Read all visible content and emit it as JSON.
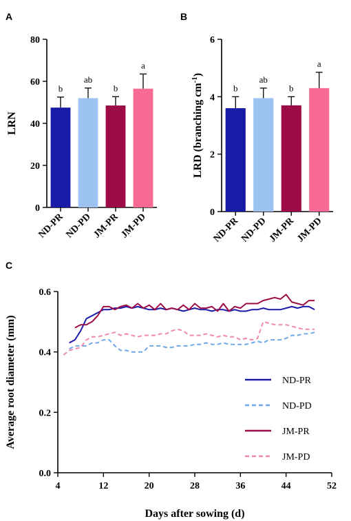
{
  "chart_data": [
    {
      "panel": "A",
      "type": "bar",
      "categories": [
        "ND-PR",
        "ND-PD",
        "JM-PR",
        "JM-PD"
      ],
      "values": [
        47.5,
        52,
        48.5,
        56.5
      ],
      "errors": [
        5,
        4.8,
        4.2,
        7
      ],
      "significance": [
        "b",
        "ab",
        "b",
        "a"
      ],
      "colors": [
        "#1a1aa8",
        "#9cc3f2",
        "#9c0b46",
        "#f76a93"
      ],
      "ylabel": "LRN",
      "ylim": [
        0,
        80
      ],
      "yticks": [
        0,
        20,
        40,
        60,
        80
      ]
    },
    {
      "panel": "B",
      "type": "bar",
      "categories": [
        "ND-PR",
        "ND-PD",
        "JM-PR",
        "JM-PD"
      ],
      "values": [
        3.6,
        3.95,
        3.7,
        4.3
      ],
      "errors": [
        0.4,
        0.35,
        0.3,
        0.55
      ],
      "significance": [
        "b",
        "ab",
        "b",
        "a"
      ],
      "colors": [
        "#1a1aa8",
        "#9cc3f2",
        "#9c0b46",
        "#f76a93"
      ],
      "ylabel": "LRD (branching cm",
      "ylabel_sup": "-1",
      "ylabel_end": ")",
      "ylim": [
        0,
        6
      ],
      "yticks": [
        0,
        2,
        4,
        6
      ]
    },
    {
      "panel": "C",
      "type": "line",
      "xlabel": "Days after sowing (d)",
      "ylabel": "Average root diameter (mm)",
      "xlim": [
        4,
        52
      ],
      "ylim": [
        0,
        0.6
      ],
      "xticks": [
        4,
        12,
        20,
        28,
        36,
        44,
        52
      ],
      "yticks": [
        "0.0",
        "0.2",
        "0.4",
        "0.6"
      ],
      "legend_position": "right",
      "series": [
        {
          "name": "ND-PR",
          "color": "#1a1aa8",
          "dash": "solid",
          "x": [
            6,
            7,
            8,
            9,
            10,
            11,
            12,
            13,
            14,
            15,
            16,
            17,
            18,
            19,
            20,
            21,
            22,
            23,
            24,
            25,
            26,
            27,
            28,
            29,
            30,
            31,
            32,
            33,
            34,
            35,
            36,
            37,
            38,
            39,
            40,
            41,
            42,
            43,
            44,
            45,
            46,
            47,
            48,
            49
          ],
          "y": [
            0.43,
            0.44,
            0.47,
            0.51,
            0.52,
            0.53,
            0.54,
            0.54,
            0.545,
            0.545,
            0.55,
            0.545,
            0.55,
            0.545,
            0.54,
            0.54,
            0.545,
            0.54,
            0.545,
            0.54,
            0.535,
            0.54,
            0.545,
            0.54,
            0.54,
            0.535,
            0.54,
            0.54,
            0.535,
            0.54,
            0.535,
            0.535,
            0.54,
            0.54,
            0.545,
            0.54,
            0.54,
            0.54,
            0.545,
            0.55,
            0.545,
            0.55,
            0.55,
            0.54
          ]
        },
        {
          "name": "ND-PD",
          "color": "#6fa8e8",
          "dash": "dashed",
          "x": [
            6,
            7,
            8,
            9,
            10,
            11,
            12,
            13,
            14,
            15,
            16,
            17,
            18,
            19,
            20,
            21,
            22,
            23,
            24,
            25,
            26,
            27,
            28,
            29,
            30,
            31,
            32,
            33,
            34,
            35,
            36,
            37,
            38,
            39,
            40,
            41,
            42,
            43,
            44,
            45,
            46,
            47,
            48,
            49
          ],
          "y": [
            0.41,
            0.42,
            0.42,
            0.42,
            0.43,
            0.43,
            0.44,
            0.44,
            0.42,
            0.405,
            0.405,
            0.4,
            0.4,
            0.4,
            0.42,
            0.42,
            0.42,
            0.415,
            0.415,
            0.42,
            0.42,
            0.42,
            0.425,
            0.425,
            0.43,
            0.425,
            0.425,
            0.43,
            0.425,
            0.425,
            0.425,
            0.425,
            0.43,
            0.435,
            0.43,
            0.44,
            0.44,
            0.44,
            0.445,
            0.455,
            0.455,
            0.46,
            0.46,
            0.465
          ]
        },
        {
          "name": "JM-PR",
          "color": "#9c0b46",
          "dash": "solid",
          "x": [
            7,
            8,
            9,
            10,
            11,
            12,
            13,
            14,
            15,
            16,
            17,
            18,
            19,
            20,
            21,
            22,
            23,
            24,
            25,
            26,
            27,
            28,
            29,
            30,
            31,
            32,
            33,
            34,
            35,
            36,
            37,
            38,
            39,
            40,
            41,
            42,
            43,
            44,
            45,
            46,
            47,
            48,
            49
          ],
          "y": [
            0.48,
            0.49,
            0.49,
            0.5,
            0.52,
            0.55,
            0.55,
            0.54,
            0.55,
            0.555,
            0.545,
            0.56,
            0.545,
            0.555,
            0.54,
            0.56,
            0.54,
            0.545,
            0.54,
            0.555,
            0.54,
            0.56,
            0.545,
            0.545,
            0.55,
            0.535,
            0.56,
            0.535,
            0.55,
            0.545,
            0.56,
            0.56,
            0.56,
            0.57,
            0.575,
            0.58,
            0.575,
            0.59,
            0.565,
            0.56,
            0.555,
            0.57,
            0.57
          ]
        },
        {
          "name": "JM-PD",
          "color": "#f088ad",
          "dash": "dashed",
          "x": [
            5,
            6,
            7,
            8,
            9,
            10,
            11,
            12,
            13,
            14,
            15,
            16,
            17,
            18,
            19,
            20,
            21,
            22,
            23,
            24,
            25,
            26,
            27,
            28,
            29,
            30,
            31,
            32,
            33,
            34,
            35,
            36,
            37,
            38,
            39,
            40,
            41,
            42,
            43,
            44,
            45,
            46,
            47,
            48,
            49
          ],
          "y": [
            0.39,
            0.405,
            0.41,
            0.415,
            0.44,
            0.45,
            0.45,
            0.455,
            0.46,
            0.465,
            0.455,
            0.46,
            0.455,
            0.45,
            0.455,
            0.455,
            0.455,
            0.46,
            0.46,
            0.47,
            0.475,
            0.47,
            0.455,
            0.455,
            0.455,
            0.46,
            0.455,
            0.45,
            0.455,
            0.45,
            0.45,
            0.44,
            0.445,
            0.44,
            0.445,
            0.5,
            0.495,
            0.49,
            0.49,
            0.49,
            0.485,
            0.48,
            0.475,
            0.475,
            0.475
          ]
        }
      ]
    }
  ]
}
